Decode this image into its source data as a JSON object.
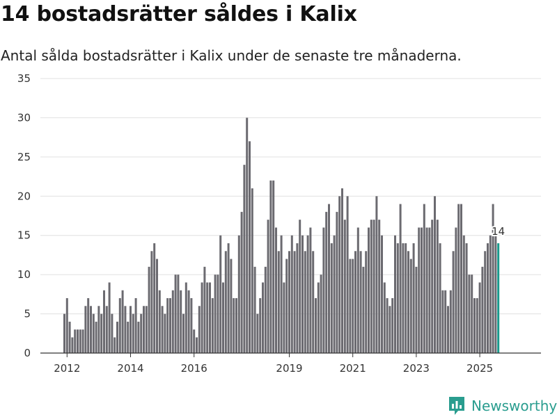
{
  "title": "14 bostadsrätter såldes i Kalix",
  "subtitle": "Antal sålda bostadsrätter i Kalix under de senaste tre månaderna.",
  "brand": {
    "name": "Newsworthy",
    "color": "#2a9d8f",
    "icon": "bar-chart-logo-icon"
  },
  "colors": {
    "bar": "#6b6a70",
    "highlight": "#1a9a8c",
    "grid": "#e0e0e0",
    "axis": "#333333"
  },
  "chart_data": {
    "type": "bar",
    "title": "14 bostadsrätter såldes i Kalix",
    "xlabel": "",
    "ylabel": "",
    "ylim": [
      0,
      35
    ],
    "yticks": [
      "0",
      "5",
      "10",
      "15",
      "20",
      "25",
      "30",
      "35"
    ],
    "xticks": [
      {
        "label": "2012",
        "index": 1
      },
      {
        "label": "2014",
        "index": 25
      },
      {
        "label": "2016",
        "index": 49
      },
      {
        "label": "2019",
        "index": 85
      },
      {
        "label": "2021",
        "index": 109
      },
      {
        "label": "2023",
        "index": 133
      },
      {
        "label": "2025",
        "index": 157
      }
    ],
    "grid": true,
    "highlight_label": "14",
    "series": [
      {
        "name": "Sålda bostadsrätter (3 mån)",
        "start": "2011-11",
        "frequency": "monthly",
        "values": [
          5,
          7,
          4,
          2,
          3,
          3,
          3,
          3,
          6,
          7,
          6,
          5,
          4,
          6,
          5,
          8,
          6,
          9,
          5,
          2,
          4,
          7,
          8,
          6,
          4,
          6,
          5,
          7,
          4,
          5,
          6,
          6,
          11,
          13,
          14,
          12,
          8,
          6,
          5,
          7,
          7,
          8,
          10,
          10,
          8,
          5,
          9,
          8,
          7,
          3,
          2,
          6,
          9,
          11,
          9,
          9,
          7,
          10,
          10,
          15,
          9,
          13,
          14,
          12,
          7,
          7,
          15,
          18,
          24,
          30,
          27,
          21,
          11,
          5,
          7,
          9,
          11,
          17,
          22,
          22,
          16,
          13,
          15,
          9,
          12,
          13,
          15,
          13,
          14,
          17,
          15,
          13,
          15,
          16,
          13,
          7,
          9,
          10,
          16,
          18,
          19,
          14,
          15,
          18,
          20,
          21,
          17,
          20,
          12,
          12,
          13,
          16,
          13,
          11,
          13,
          16,
          17,
          17,
          20,
          17,
          15,
          9,
          7,
          6,
          7,
          15,
          14,
          19,
          14,
          14,
          13,
          12,
          14,
          11,
          16,
          16,
          19,
          16,
          16,
          17,
          20,
          17,
          14,
          8,
          8,
          6,
          8,
          13,
          16,
          19,
          19,
          15,
          14,
          10,
          10,
          7,
          7,
          9,
          11,
          13,
          14,
          15,
          19,
          15,
          14
        ]
      }
    ]
  }
}
